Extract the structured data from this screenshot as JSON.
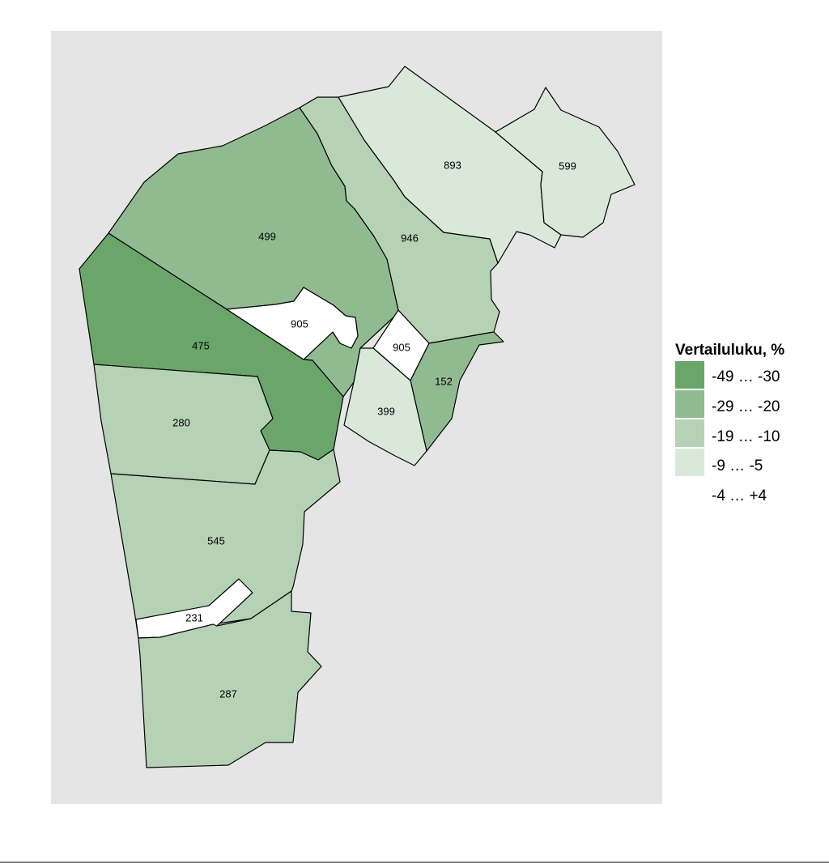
{
  "legend": {
    "title": "Vertailuluku, %",
    "classes": [
      {
        "label": "-49 … -30",
        "color": "#6aa66a"
      },
      {
        "label": "-29 … -20",
        "color": "#90bb90"
      },
      {
        "label": "-19 … -10",
        "color": "#b5d2b5"
      },
      {
        "label": "-9 … -5",
        "color": "#d9e8d9"
      },
      {
        "label": "-4 … +4",
        "color": "#ffffff"
      }
    ]
  },
  "colors": {
    "panel_background": "#e5e5e5",
    "border": "#000000"
  },
  "regions": [
    {
      "id": "499",
      "label": "499",
      "class": 1
    },
    {
      "id": "475",
      "label": "475",
      "class": 0
    },
    {
      "id": "905-west",
      "label": "905",
      "class": 4
    },
    {
      "id": "946",
      "label": "946",
      "class": 2
    },
    {
      "id": "893",
      "label": "893",
      "class": 3
    },
    {
      "id": "599",
      "label": "599",
      "class": 3
    },
    {
      "id": "905-east",
      "label": "905",
      "class": 4
    },
    {
      "id": "152",
      "label": "152",
      "class": 1
    },
    {
      "id": "399",
      "label": "399",
      "class": 3
    },
    {
      "id": "280",
      "label": "280",
      "class": 2
    },
    {
      "id": "545",
      "label": "545",
      "class": 2
    },
    {
      "id": "231",
      "label": "231",
      "class": 4
    },
    {
      "id": "287",
      "label": "287",
      "class": 2
    }
  ]
}
